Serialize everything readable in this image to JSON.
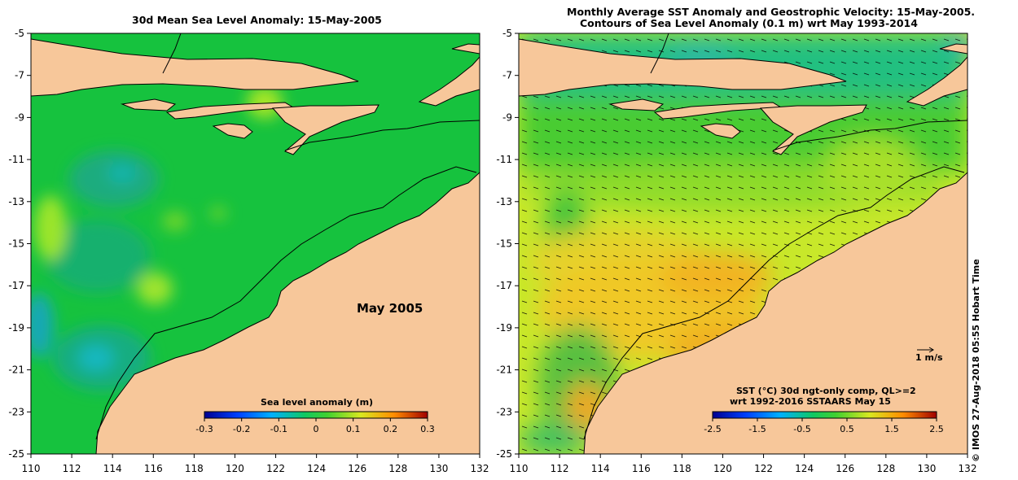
{
  "left_panel": {
    "title": "30d Mean Sea Level Anomaly: 15-May-2005",
    "overlay_label": "May 2005",
    "colorbar_title": "Sea level anomaly (m)",
    "colorbar_ticks": [
      "-0.3",
      "-0.2",
      "-0.1",
      "0",
      "0.1",
      "0.2",
      "0.3"
    ]
  },
  "right_panel": {
    "title_line1": "Monthly Average SST Anomaly  and Geostrophic Velocity: 15-May-2005.",
    "title_line2": "Contours of Sea Level Anomaly (0.1 m) wrt May 1993-2014",
    "velocity_scale_label": "1 m/s",
    "legend_line1": "SST (°C) 30d ngt-only comp, QL>=2",
    "legend_line2": "wrt 1992-2016 SSTAARS May 15",
    "colorbar_ticks": [
      "-2.5",
      "-1.5",
      "-0.5",
      "0.5",
      "1.5",
      "2.5"
    ]
  },
  "axes": {
    "lat_ticks": [
      "-5",
      "-7",
      "-9",
      "-11",
      "-13",
      "-15",
      "-17",
      "-19",
      "-21",
      "-23",
      "-25"
    ],
    "lon_ticks": [
      "110",
      "112",
      "114",
      "116",
      "118",
      "120",
      "122",
      "124",
      "126",
      "128",
      "130",
      "132"
    ]
  },
  "stamp": "© IMOS 27-Aug-2018 05:55 Hobart Time",
  "colors": {
    "land": "#f7c79a",
    "ocean_left": "#16c23e",
    "ocean_right": "#c8e82a"
  }
}
